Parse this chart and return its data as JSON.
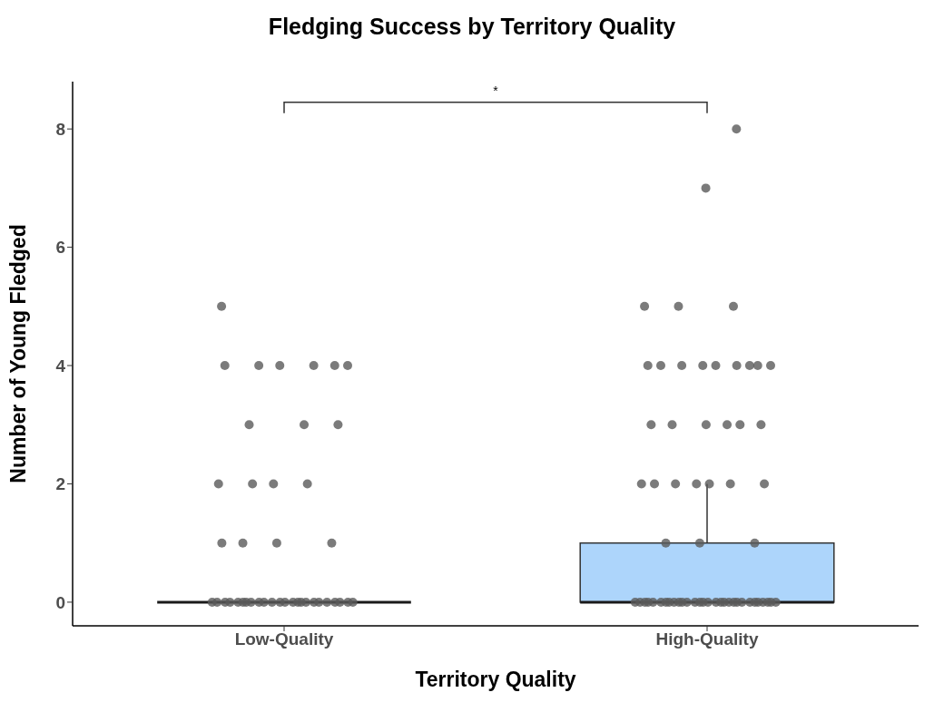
{
  "chart_data": {
    "type": "box",
    "title": "Fledging Success by Territory Quality",
    "xlabel": "Territory Quality",
    "ylabel": "Number of Young Fledged",
    "categories": [
      "Low-Quality",
      "High-Quality"
    ],
    "ylim": [
      -0.4,
      8.8
    ],
    "yticks": [
      0,
      2,
      4,
      6,
      8
    ],
    "annotations": [
      "*"
    ],
    "series": [
      {
        "type": "box",
        "colors": [
          "#1a1a1a",
          "#add5fb"
        ],
        "boxes": [
          {
            "low": 0,
            "q1": 0,
            "median": 0,
            "q3": 0,
            "high": 0
          },
          {
            "low": 0,
            "q1": 0,
            "median": 0,
            "q3": 1,
            "high": 2
          }
        ]
      },
      {
        "type": "scatter",
        "color": "#5a5a5a",
        "x": [
          "Low-Quality",
          "Low-Quality",
          "Low-Quality",
          "Low-Quality",
          "Low-Quality",
          "Low-Quality",
          "Low-Quality",
          "Low-Quality",
          "Low-Quality",
          "Low-Quality",
          "Low-Quality",
          "Low-Quality",
          "Low-Quality",
          "Low-Quality",
          "Low-Quality",
          "Low-Quality",
          "Low-Quality",
          "Low-Quality",
          "Low-Quality",
          "Low-Quality",
          "Low-Quality",
          "Low-Quality",
          "Low-Quality",
          "Low-Quality",
          "Low-Quality",
          "Low-Quality",
          "Low-Quality",
          "Low-Quality",
          "Low-Quality",
          "Low-Quality",
          "Low-Quality",
          "Low-Quality",
          "Low-Quality",
          "Low-Quality",
          "Low-Quality",
          "Low-Quality",
          "Low-Quality",
          "Low-Quality",
          "Low-Quality",
          "Low-Quality",
          "Low-Quality",
          "Low-Quality",
          "High-Quality",
          "High-Quality",
          "High-Quality",
          "High-Quality",
          "High-Quality",
          "High-Quality",
          "High-Quality",
          "High-Quality",
          "High-Quality",
          "High-Quality",
          "High-Quality",
          "High-Quality",
          "High-Quality",
          "High-Quality",
          "High-Quality",
          "High-Quality",
          "High-Quality",
          "High-Quality",
          "High-Quality",
          "High-Quality",
          "High-Quality",
          "High-Quality",
          "High-Quality",
          "High-Quality",
          "High-Quality",
          "High-Quality",
          "High-Quality",
          "High-Quality",
          "High-Quality",
          "High-Quality",
          "High-Quality",
          "High-Quality",
          "High-Quality",
          "High-Quality",
          "High-Quality",
          "High-Quality",
          "High-Quality",
          "High-Quality",
          "High-Quality",
          "High-Quality",
          "High-Quality",
          "High-Quality",
          "High-Quality",
          "High-Quality",
          "High-Quality",
          "High-Quality",
          "High-Quality",
          "High-Quality",
          "High-Quality",
          "High-Quality",
          "High-Quality",
          "High-Quality",
          "High-Quality",
          "High-Quality",
          "High-Quality",
          "High-Quality",
          "High-Quality",
          "High-Quality",
          "High-Quality",
          "High-Quality"
        ],
        "values": [
          5,
          4,
          4,
          4,
          4,
          4,
          4,
          3,
          3,
          3,
          2,
          2,
          2,
          2,
          1,
          1,
          1,
          1,
          0,
          0,
          0,
          0,
          0,
          0,
          0,
          0,
          0,
          0,
          0,
          0,
          0,
          0,
          0,
          0,
          0,
          0,
          0,
          0,
          0,
          0,
          0,
          0,
          8,
          7,
          5,
          5,
          5,
          4,
          4,
          4,
          4,
          4,
          4,
          4,
          4,
          4,
          3,
          3,
          3,
          3,
          3,
          3,
          2,
          2,
          2,
          2,
          2,
          2,
          2,
          1,
          1,
          1,
          0,
          0,
          0,
          0,
          0,
          0,
          0,
          0,
          0,
          0,
          0,
          0,
          0,
          0,
          0,
          0,
          0,
          0,
          0,
          0,
          0,
          0,
          0,
          0,
          0,
          0,
          0,
          0,
          0,
          0
        ]
      }
    ]
  }
}
